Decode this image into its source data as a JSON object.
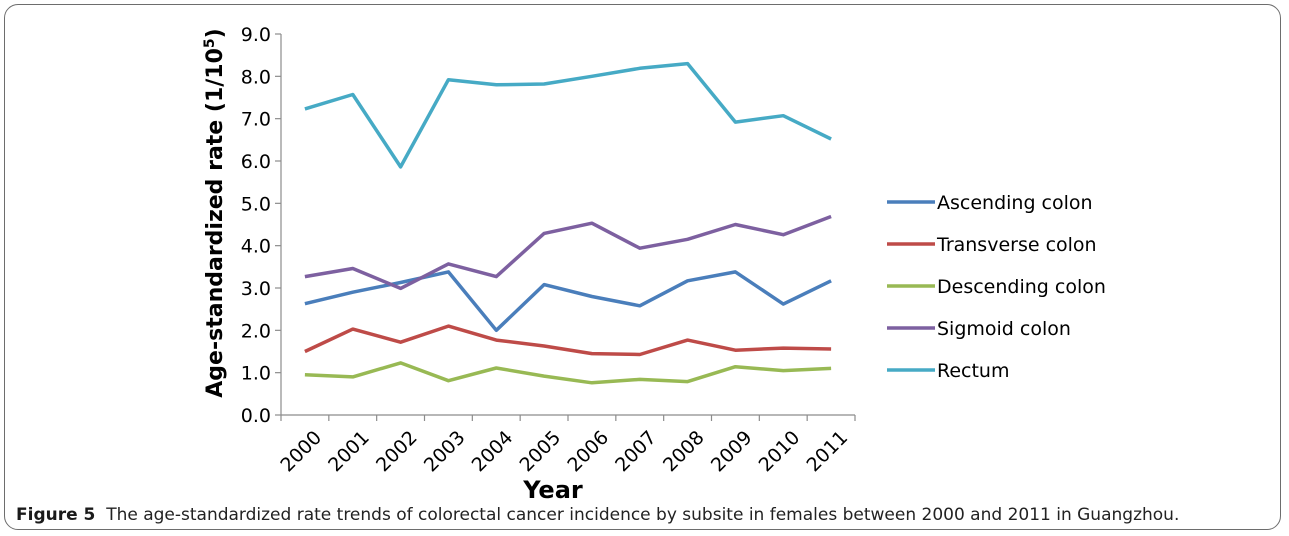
{
  "figure": {
    "caption_label": "Figure 5",
    "caption_text": "The age-standardized rate trends of colorectal cancer incidence by subsite in females between 2000 and 2011 in Guangzhou."
  },
  "chart_data": {
    "type": "line",
    "xlabel": "Year",
    "ylabel": "Age-standardized rate (1/10",
    "ylabel_sup": "5",
    "ylabel_end": ")",
    "categories": [
      "2000",
      "2001",
      "2002",
      "2003",
      "2004",
      "2005",
      "2006",
      "2007",
      "2008",
      "2009",
      "2010",
      "2011"
    ],
    "ylim": [
      0,
      9
    ],
    "yticks": [
      "0.0",
      "1.0",
      "2.0",
      "3.0",
      "4.0",
      "5.0",
      "6.0",
      "7.0",
      "8.0",
      "9.0"
    ],
    "grid": false,
    "legend_position": "right",
    "series": [
      {
        "name": "Ascending colon",
        "color": "#4a7ebb",
        "values": [
          2.63,
          2.9,
          3.13,
          3.38,
          2.0,
          3.08,
          2.8,
          2.58,
          3.17,
          3.38,
          2.62,
          3.17
        ]
      },
      {
        "name": "Transverse colon",
        "color": "#be4b48",
        "values": [
          1.5,
          2.03,
          1.72,
          2.1,
          1.77,
          1.63,
          1.45,
          1.43,
          1.77,
          1.53,
          1.58,
          1.56
        ]
      },
      {
        "name": "Descending colon",
        "color": "#98b954",
        "values": [
          0.95,
          0.9,
          1.23,
          0.81,
          1.11,
          0.92,
          0.76,
          0.84,
          0.79,
          1.14,
          1.05,
          1.1
        ]
      },
      {
        "name": "Sigmoid colon",
        "color": "#7d60a0",
        "values": [
          3.27,
          3.46,
          2.99,
          3.57,
          3.27,
          4.29,
          4.53,
          3.94,
          4.15,
          4.5,
          4.26,
          4.69
        ]
      },
      {
        "name": "Rectum",
        "color": "#46aac5",
        "values": [
          7.23,
          7.57,
          5.86,
          7.92,
          7.8,
          7.82,
          8.0,
          8.19,
          8.3,
          6.92,
          7.07,
          6.52
        ]
      }
    ]
  }
}
